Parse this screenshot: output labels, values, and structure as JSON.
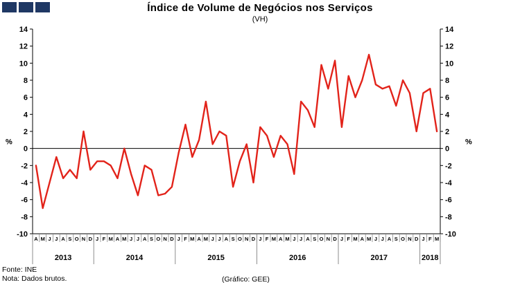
{
  "logo": {
    "square_color": "#1f3864",
    "square_count": 3
  },
  "header": {
    "title": "Índice de Volume de Negócios nos Serviços",
    "subtitle": "(VH)"
  },
  "footer": {
    "source": "Fonte: INE",
    "note": "Nota: Dados brutos.",
    "credit": "(Gráfico: GEE)"
  },
  "chart_data": {
    "type": "line",
    "title": "Índice de Volume de Negócios nos Serviços",
    "subtitle": "(VH)",
    "unit": "%",
    "line_color": "#e2231a",
    "axis_color": "#000000",
    "separator_color": "#808080",
    "ylim": [
      -10,
      14
    ],
    "ytick_step": 2,
    "grid": "zero-line-only",
    "legend": "none",
    "year_groups": [
      {
        "year": "2013",
        "months": [
          "A",
          "M",
          "J",
          "J",
          "A",
          "S",
          "O",
          "N",
          "D"
        ],
        "values": [
          -2,
          -7,
          -4,
          -1,
          -3.5,
          -2.5,
          -3.5,
          2,
          -2.5
        ]
      },
      {
        "year": "2014",
        "months": [
          "J",
          "F",
          "M",
          "A",
          "M",
          "J",
          "J",
          "A",
          "S",
          "O",
          "N",
          "D"
        ],
        "values": [
          -1.5,
          -1.5,
          -2,
          -3.5,
          0,
          -3,
          -5.5,
          -2,
          -2.5,
          -5.5,
          -5.3,
          -4.5
        ]
      },
      {
        "year": "2015",
        "months": [
          "J",
          "F",
          "M",
          "A",
          "M",
          "J",
          "J",
          "A",
          "S",
          "O",
          "N",
          "D"
        ],
        "values": [
          -0.5,
          2.8,
          -1,
          1,
          5.5,
          0.5,
          2,
          1.5,
          -4.5,
          -1.5,
          0.5,
          -4
        ]
      },
      {
        "year": "2016",
        "months": [
          "J",
          "F",
          "M",
          "A",
          "M",
          "J",
          "J",
          "A",
          "S",
          "O",
          "N",
          "D"
        ],
        "values": [
          2.5,
          1.5,
          -1,
          1.5,
          0.5,
          -3,
          5.5,
          4.5,
          2.5,
          9.8,
          7,
          10.3
        ]
      },
      {
        "year": "2017",
        "months": [
          "J",
          "F",
          "M",
          "A",
          "M",
          "J",
          "J",
          "A",
          "S",
          "O",
          "N",
          "D"
        ],
        "values": [
          2.5,
          8.5,
          6,
          8,
          11,
          7.5,
          7,
          7.3,
          5,
          8,
          6.5,
          2
        ]
      },
      {
        "year": "2018",
        "months": [
          "J",
          "F",
          "M"
        ],
        "values": [
          6.5,
          7,
          2
        ]
      }
    ]
  }
}
